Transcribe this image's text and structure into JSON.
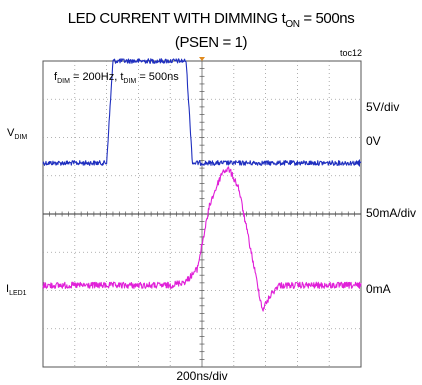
{
  "title": {
    "line1_main": "LED CURRENT WITH DIMMING t",
    "line1_sub": "ON",
    "line1_end": " = 500ns",
    "line2": "(PSEN = 1)"
  },
  "toc": "toc12",
  "annotation": {
    "f": "f",
    "f_sub": "DIM",
    "f_val": " = 200Hz, t",
    "t_sub": "DIM",
    "t_val": " = 500ns"
  },
  "channels": {
    "vdim": {
      "main": "V",
      "sub": "DIM"
    },
    "iled": {
      "main": "I",
      "sub": "LED1"
    }
  },
  "scales": {
    "vdim_div": "5V/div",
    "vdim_zero": "0V",
    "iled_div": "50mA/div",
    "iled_zero": "0mA"
  },
  "xlabel": "200ns/div",
  "colors": {
    "vdim_trace": "#1f2fbf",
    "iled_trace": "#e020d8",
    "grid": "#9a9a9a",
    "frame": "#555555"
  },
  "chart_data": {
    "type": "line",
    "grid": {
      "x_divisions": 10,
      "y_divisions": 8
    },
    "x_unit": "ns",
    "x_per_div": 200,
    "x_range": [
      -1000,
      1000
    ],
    "series": [
      {
        "name": "VDIM",
        "y_per_div": 5,
        "y_unit": "V",
        "y_range": [
          -10,
          5
        ],
        "x": [
          -1000,
          -600,
          -560,
          -100,
          -60,
          1000
        ],
        "y": [
          0,
          0,
          5,
          5,
          0,
          0
        ]
      },
      {
        "name": "ILED1",
        "y_per_div": 50,
        "y_unit": "mA",
        "y_range": [
          -40,
          110
        ],
        "x": [
          -1000,
          -200,
          -100,
          -30,
          50,
          130,
          170,
          230,
          300,
          380,
          430,
          480,
          550,
          650,
          1000
        ],
        "y": [
          0,
          0,
          2,
          8,
          40,
          56,
          57,
          48,
          20,
          -12,
          -5,
          0,
          0,
          0,
          0
        ]
      }
    ]
  }
}
